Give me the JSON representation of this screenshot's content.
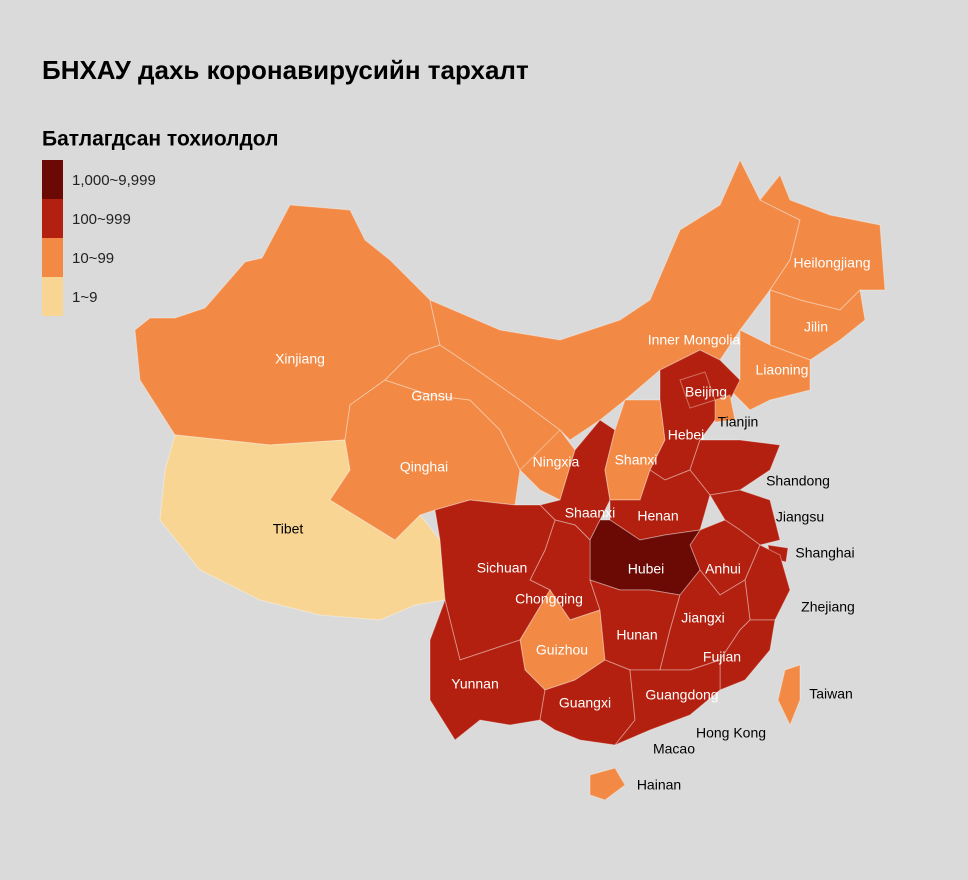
{
  "title": "БНХАУ дахь коронавирусийн тархалт",
  "legend": {
    "title": "Батлагдсан тохиолдол",
    "items": [
      {
        "label": "1,000~9,999",
        "color": "#6b0905"
      },
      {
        "label": "100~999",
        "color": "#b3200f"
      },
      {
        "label": "10~99",
        "color": "#f28a45"
      },
      {
        "label": "1~9",
        "color": "#f8d592"
      }
    ]
  },
  "regions": [
    {
      "name": "Xinjiang",
      "color": "#f28a45"
    },
    {
      "name": "Tibet",
      "color": "#f8d592"
    },
    {
      "name": "Qinghai",
      "color": "#f28a45"
    },
    {
      "name": "Gansu",
      "color": "#f28a45"
    },
    {
      "name": "Inner Mongolia",
      "color": "#f28a45"
    },
    {
      "name": "Heilongjiang",
      "color": "#f28a45"
    },
    {
      "name": "Jilin",
      "color": "#f28a45"
    },
    {
      "name": "Liaoning",
      "color": "#f28a45"
    },
    {
      "name": "Ningxia",
      "color": "#f28a45"
    },
    {
      "name": "Shaanxi",
      "color": "#b3200f"
    },
    {
      "name": "Shanxi",
      "color": "#f28a45"
    },
    {
      "name": "Hebei",
      "color": "#b3200f"
    },
    {
      "name": "Beijing",
      "color": "#b3200f"
    },
    {
      "name": "Tianjin",
      "color": "#f28a45"
    },
    {
      "name": "Shandong",
      "color": "#b3200f"
    },
    {
      "name": "Henan",
      "color": "#b3200f"
    },
    {
      "name": "Jiangsu",
      "color": "#b3200f"
    },
    {
      "name": "Anhui",
      "color": "#b3200f"
    },
    {
      "name": "Shanghai",
      "color": "#b3200f"
    },
    {
      "name": "Zhejiang",
      "color": "#b3200f"
    },
    {
      "name": "Hubei",
      "color": "#6b0905"
    },
    {
      "name": "Chongqing",
      "color": "#b3200f"
    },
    {
      "name": "Sichuan",
      "color": "#b3200f"
    },
    {
      "name": "Guizhou",
      "color": "#f28a45"
    },
    {
      "name": "Yunnan",
      "color": "#b3200f"
    },
    {
      "name": "Hunan",
      "color": "#b3200f"
    },
    {
      "name": "Jiangxi",
      "color": "#b3200f"
    },
    {
      "name": "Fujian",
      "color": "#b3200f"
    },
    {
      "name": "Guangxi",
      "color": "#b3200f"
    },
    {
      "name": "Guangdong",
      "color": "#b3200f"
    },
    {
      "name": "Hainan",
      "color": "#f28a45"
    },
    {
      "name": "Taiwan",
      "color": "#f28a45"
    }
  ],
  "labels": [
    "Hong Kong",
    "Macao"
  ]
}
